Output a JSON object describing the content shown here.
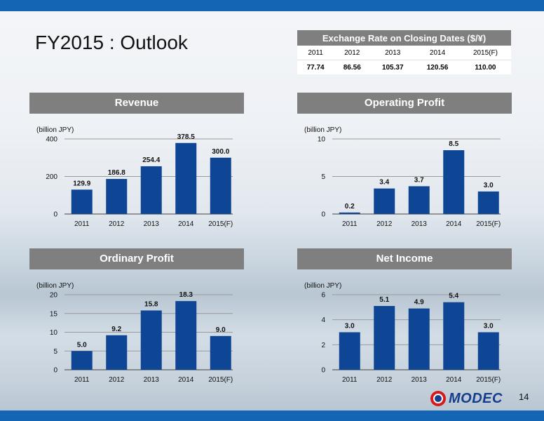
{
  "page": {
    "title": "FY2015 : Outlook",
    "page_number": "14",
    "logo_text": "MODEC"
  },
  "exchange": {
    "title": "Exchange Rate on Closing Dates ($/¥)",
    "years": [
      "2011",
      "2012",
      "2013",
      "2014",
      "2015(F)"
    ],
    "rates": [
      "77.74",
      "86.56",
      "105.37",
      "120.56",
      "110.00"
    ]
  },
  "colors": {
    "bar": "#0e4595",
    "header": "#7f7f7f",
    "topbar": "#1565b5",
    "logo_red": "#d7191d",
    "logo_blue": "#163c8c"
  },
  "chart_data": [
    {
      "type": "bar",
      "title": "Revenue",
      "ylabel": "(billion JPY)",
      "categories": [
        "2011",
        "2012",
        "2013",
        "2014",
        "2015(F)"
      ],
      "values": [
        129.9,
        186.8,
        254.4,
        378.5,
        300.0
      ],
      "value_labels": [
        "129.9",
        "186.8",
        "254.4",
        "378.5",
        "300.0"
      ],
      "ylim": [
        0,
        400
      ],
      "yticks": [
        0,
        200,
        400
      ],
      "grid": true
    },
    {
      "type": "bar",
      "title": "Operating Profit",
      "ylabel": "(billion JPY)",
      "categories": [
        "2011",
        "2012",
        "2013",
        "2014",
        "2015(F)"
      ],
      "values": [
        0.2,
        3.4,
        3.7,
        8.5,
        3.0
      ],
      "value_labels": [
        "0.2",
        "3.4",
        "3.7",
        "8.5",
        "3.0"
      ],
      "ylim": [
        0,
        10
      ],
      "yticks": [
        0,
        5,
        10
      ],
      "grid": true
    },
    {
      "type": "bar",
      "title": "Ordinary Profit",
      "ylabel": "(billion JPY)",
      "categories": [
        "2011",
        "2012",
        "2013",
        "2014",
        "2015(F)"
      ],
      "values": [
        5.0,
        9.2,
        15.8,
        18.3,
        9.0
      ],
      "value_labels": [
        "5.0",
        "9.2",
        "15.8",
        "18.3",
        "9.0"
      ],
      "ylim": [
        0,
        20
      ],
      "yticks": [
        0,
        5,
        10,
        15,
        20
      ],
      "grid": true
    },
    {
      "type": "bar",
      "title": "Net Income",
      "ylabel": "(billion JPY)",
      "categories": [
        "2011",
        "2012",
        "2013",
        "2014",
        "2015(F)"
      ],
      "values": [
        3.0,
        5.1,
        4.9,
        5.4,
        3.0
      ],
      "value_labels": [
        "3.0",
        "5.1",
        "4.9",
        "5.4",
        "3.0"
      ],
      "ylim": [
        0,
        6
      ],
      "yticks": [
        0,
        2,
        4,
        6
      ],
      "grid": true
    }
  ]
}
